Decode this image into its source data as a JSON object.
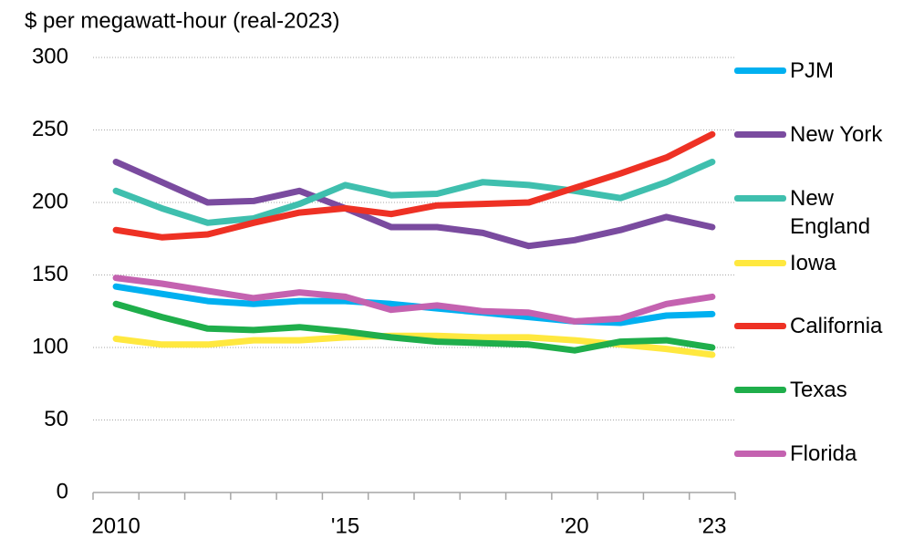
{
  "chart_data": {
    "type": "line",
    "title": "$ per megawatt-hour (real-2023)",
    "categories": [
      "2010",
      null,
      null,
      null,
      null,
      "'15",
      null,
      null,
      null,
      null,
      "'20",
      null,
      null,
      "'23"
    ],
    "ylim": [
      0,
      300
    ],
    "yticks": [
      0,
      50,
      100,
      150,
      200,
      250,
      300
    ],
    "grid": true,
    "series": [
      {
        "name": "PJM",
        "color": "#00b0f0",
        "values": [
          142,
          137,
          132,
          130,
          132,
          132,
          130,
          127,
          124,
          121,
          118,
          117,
          122,
          123
        ]
      },
      {
        "name": "New York",
        "color": "#7a4b9f",
        "values": [
          228,
          214,
          200,
          201,
          208,
          196,
          183,
          183,
          179,
          170,
          174,
          181,
          190,
          183
        ]
      },
      {
        "name": "New England",
        "color": "#3fbfae",
        "values": [
          208,
          196,
          186,
          189,
          199,
          212,
          205,
          206,
          214,
          212,
          208,
          203,
          214,
          228
        ]
      },
      {
        "name": "Iowa",
        "color": "#ffe83f",
        "values": [
          106,
          102,
          102,
          105,
          105,
          107,
          108,
          108,
          107,
          107,
          105,
          102,
          99,
          95
        ]
      },
      {
        "name": "California",
        "color": "#ee3124",
        "values": [
          181,
          176,
          178,
          186,
          193,
          196,
          192,
          198,
          199,
          200,
          210,
          220,
          231,
          247
        ]
      },
      {
        "name": "Texas",
        "color": "#1fae4b",
        "values": [
          130,
          121,
          113,
          112,
          114,
          111,
          107,
          104,
          103,
          102,
          98,
          104,
          105,
          100
        ]
      },
      {
        "name": "Florida",
        "color": "#c462b0",
        "values": [
          148,
          144,
          139,
          134,
          138,
          135,
          126,
          129,
          125,
          124,
          118,
          120,
          130,
          135
        ]
      }
    ]
  }
}
